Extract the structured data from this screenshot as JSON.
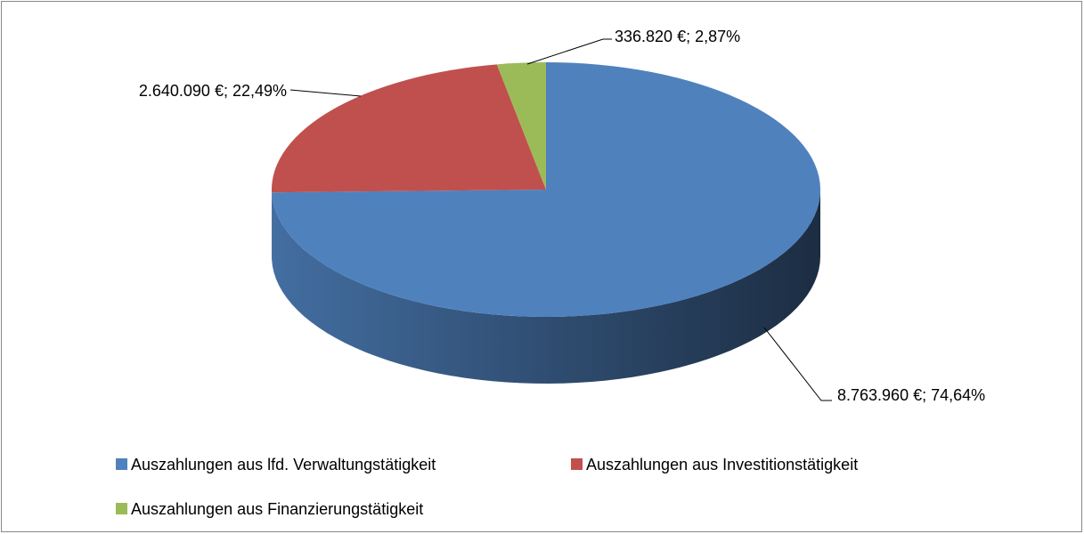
{
  "chart_data": {
    "type": "pie",
    "categories": [
      "Auszahlungen aus lfd. Verwaltungstätigkeit",
      "Auszahlungen aus Investitionstätigkeit",
      "Auszahlungen aus Finanzierungstätigkeit"
    ],
    "values": [
      8763960,
      2640090,
      336820
    ],
    "value_labels": [
      "8.763.960 €; 74,64%",
      "2.640.090 €; 22,49%",
      "336.820 €; 2,87%"
    ],
    "colors": [
      "#4f81bd",
      "#c0504d",
      "#9bbb59"
    ],
    "legend": "bottom"
  }
}
